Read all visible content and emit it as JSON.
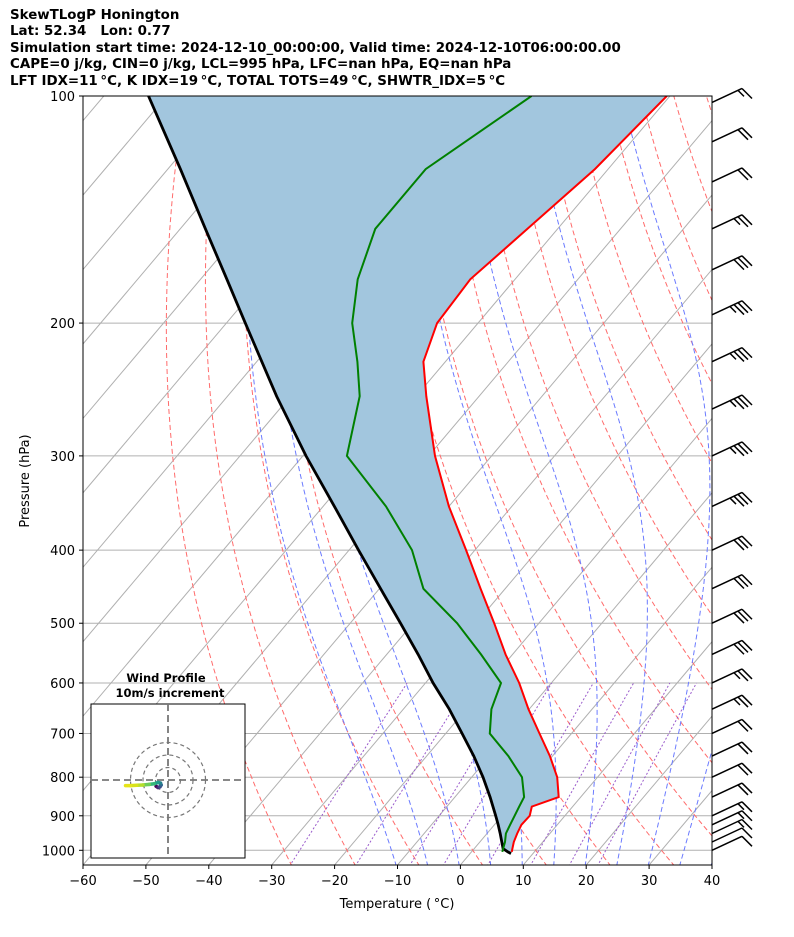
{
  "header": {
    "line1": "SkewTLogP Honington",
    "line2": "Lat: 52.34   Lon: 0.77",
    "line3": "Simulation start time: 2024-12-10_00:00:00, Valid time: 2024-12-10T06:00:00.00",
    "line4": "CAPE=0 j/kg, CIN=0 j/kg, LCL=995 hPa, LFC=nan hPa, EQ=nan hPa",
    "line5": "LFT IDX=11 °C, K IDX=19 °C, TOTAL TOTS=49 °C, SHWTR_IDX=5 °C"
  },
  "chart_data": {
    "type": "line",
    "xlabel": "Temperature ( °C)",
    "ylabel": "Pressure (hPa)",
    "xlim": [
      -60,
      40
    ],
    "ylim": [
      1050,
      100
    ],
    "y_scale": "log",
    "x_ticks": [
      "−60",
      "−50",
      "−40",
      "−30",
      "−20",
      "−10",
      "0",
      "10",
      "20",
      "30",
      "40"
    ],
    "x_tick_values": [
      -60,
      -50,
      -40,
      -30,
      -20,
      -10,
      0,
      10,
      20,
      30,
      40
    ],
    "y_ticks": [
      "100",
      "200",
      "300",
      "400",
      "500",
      "600",
      "700",
      "800",
      "900",
      "1000"
    ],
    "y_tick_values": [
      100,
      200,
      300,
      400,
      500,
      600,
      700,
      800,
      900,
      1000
    ],
    "grid": true,
    "colors": {
      "temperature": "#ff0000",
      "dewpoint": "#008000",
      "parcel": "#000000",
      "cape_shading": "#a2c6de",
      "dry_adiabats": "#ff6b6b",
      "moist_adiabats": "#6b7bff",
      "mixing_ratio": "#9a5ccc",
      "isotherms": "#b0b0b0"
    },
    "series": [
      {
        "key": "temperature",
        "pressure": [
          1005,
          975,
          950,
          925,
          900,
          875,
          850,
          800,
          750,
          700,
          650,
          600,
          550,
          500,
          450,
          400,
          350,
          300,
          250,
          225,
          200,
          175,
          150,
          125,
          100
        ],
        "temp": [
          6.4,
          5.4,
          4.8,
          4.3,
          4.4,
          3.5,
          6.5,
          3.6,
          -0.4,
          -5.1,
          -10.1,
          -15.1,
          -21.1,
          -27.1,
          -33.9,
          -41.4,
          -50.0,
          -59.0,
          -68.4,
          -73.5,
          -76.5,
          -77.1,
          -74.8,
          -72.1,
          -70.5
        ]
      },
      {
        "key": "dewpoint",
        "pressure": [
          1005,
          975,
          950,
          925,
          900,
          875,
          850,
          800,
          750,
          700,
          650,
          600,
          550,
          500,
          450,
          400,
          350,
          300,
          250,
          225,
          200,
          175,
          150,
          125,
          100
        ],
        "temp": [
          4.9,
          4.0,
          3.0,
          2.5,
          2.0,
          1.5,
          1.0,
          -2.0,
          -7.0,
          -13.0,
          -16.0,
          -18.0,
          -25.0,
          -33.0,
          -43.0,
          -50.0,
          -60.0,
          -73.0,
          -79.0,
          -84.0,
          -90.0,
          -95.0,
          -99.0,
          -99.0,
          -92.0
        ]
      },
      {
        "key": "parcel",
        "pressure": [
          1010,
          1005,
          995,
          975,
          950,
          925,
          900,
          850,
          800,
          750,
          700,
          650,
          600,
          550,
          500,
          450,
          400,
          350,
          300,
          250,
          200,
          175,
          150,
          125,
          100
        ],
        "temp": [
          6.5,
          5.8,
          4.6,
          3.5,
          2.1,
          0.6,
          -1.0,
          -4.4,
          -8.2,
          -12.5,
          -17.4,
          -22.7,
          -28.8,
          -35.0,
          -42.0,
          -49.8,
          -58.5,
          -68.2,
          -79.5,
          -92.2,
          -107.0,
          -115.8,
          -126.0,
          -138.0,
          -152.9
        ]
      }
    ],
    "wind_barbs": [
      {
        "pressure": 1000,
        "speed_kt": 10
      },
      {
        "pressure": 975,
        "speed_kt": 10
      },
      {
        "pressure": 950,
        "speed_kt": 15
      },
      {
        "pressure": 925,
        "speed_kt": 15
      },
      {
        "pressure": 900,
        "speed_kt": 15
      },
      {
        "pressure": 850,
        "speed_kt": 20
      },
      {
        "pressure": 800,
        "speed_kt": 20
      },
      {
        "pressure": 750,
        "speed_kt": 20
      },
      {
        "pressure": 700,
        "speed_kt": 20
      },
      {
        "pressure": 650,
        "speed_kt": 25
      },
      {
        "pressure": 600,
        "speed_kt": 25
      },
      {
        "pressure": 550,
        "speed_kt": 30
      },
      {
        "pressure": 500,
        "speed_kt": 30
      },
      {
        "pressure": 450,
        "speed_kt": 30
      },
      {
        "pressure": 400,
        "speed_kt": 30
      },
      {
        "pressure": 350,
        "speed_kt": 35
      },
      {
        "pressure": 300,
        "speed_kt": 35
      },
      {
        "pressure": 260,
        "speed_kt": 35
      },
      {
        "pressure": 225,
        "speed_kt": 35
      },
      {
        "pressure": 195,
        "speed_kt": 35
      },
      {
        "pressure": 170,
        "speed_kt": 30
      },
      {
        "pressure": 150,
        "speed_kt": 25
      },
      {
        "pressure": 130,
        "speed_kt": 20
      },
      {
        "pressure": 115,
        "speed_kt": 20
      },
      {
        "pressure": 102,
        "speed_kt": 15
      }
    ],
    "inset": {
      "title_line1": "Wind Profile",
      "title_line2": "10m/s increment",
      "rings_ms": [
        10,
        20,
        30
      ],
      "hodograph_uv": [
        [
          -9.5,
          -5.0
        ],
        [
          -8.0,
          -6.0
        ],
        [
          -6.5,
          -5.5
        ],
        [
          -5.5,
          -4.0
        ],
        [
          -6.0,
          -2.5
        ],
        [
          -8.0,
          -2.0
        ],
        [
          -11.0,
          -3.0
        ],
        [
          -15.0,
          -3.5
        ],
        [
          -20.0,
          -4.0
        ],
        [
          -25.0,
          -4.2
        ],
        [
          -30.0,
          -4.5
        ],
        [
          -34.0,
          -4.5
        ]
      ]
    }
  }
}
